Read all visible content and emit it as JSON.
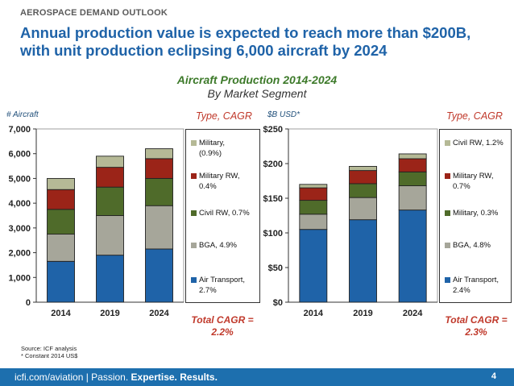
{
  "header": {
    "kicker": "AEROSPACE DEMAND OUTLOOK",
    "headline_line1": "Annual production value is expected to reach more than $200B,",
    "headline_line2": "with unit production eclipsing 6,000 aircraft by 2024"
  },
  "chart_title": "Aircraft Production 2014-2024",
  "chart_subtitle": "By Market Segment",
  "colors": {
    "air_transport": "#1f63a8",
    "bga": "#a6a69a",
    "civil_rw": "#4f6b2a",
    "military_rw": "#9b2418",
    "military": "#b5b996",
    "text_red": "#c0392b"
  },
  "left": {
    "ylabel": "# Aircraft",
    "type_header": "Type, CAGR",
    "total_line1": "Total CAGR =",
    "total_line2": "2.2%",
    "legend": [
      {
        "line1": "Military,",
        "line2": "(0.9%)",
        "color": "#b5b996"
      },
      {
        "line1": "Military RW,",
        "line2": "0.4%",
        "color": "#9b2418"
      },
      {
        "line1": "Civil RW, 0.7%",
        "line2": "",
        "color": "#4f6b2a"
      },
      {
        "line1": "BGA, 4.9%",
        "line2": "",
        "color": "#a6a69a"
      },
      {
        "line1": "Air Transport,",
        "line2": "2.7%",
        "color": "#1f63a8"
      }
    ]
  },
  "right": {
    "ylabel": "$B USD*",
    "type_header": "Type, CAGR",
    "total_line1": "Total CAGR =",
    "total_line2": "2.3%",
    "legend": [
      {
        "line1": "Civil RW, 1.2%",
        "line2": "",
        "color": "#b5b996"
      },
      {
        "line1": "Military RW,",
        "line2": "0.7%",
        "color": "#9b2418"
      },
      {
        "line1": "Military, 0.3%",
        "line2": "",
        "color": "#4f6b2a"
      },
      {
        "line1": "BGA, 4.8%",
        "line2": "",
        "color": "#a6a69a"
      },
      {
        "line1": "Air Transport,",
        "line2": "2.4%",
        "color": "#1f63a8"
      }
    ]
  },
  "chart_data": [
    {
      "type": "bar",
      "stacked": true,
      "title": "Aircraft Production 2014-2024",
      "ylabel": "# Aircraft",
      "categories": [
        "2014",
        "2019",
        "2024"
      ],
      "ylim": [
        0,
        7000
      ],
      "yticks": [
        0,
        1000,
        2000,
        3000,
        4000,
        5000,
        6000,
        7000
      ],
      "ytick_labels": [
        "0",
        "1,000",
        "2,000",
        "3,000",
        "4,000",
        "5,000",
        "6,000",
        "7,000"
      ],
      "series": [
        {
          "name": "Air Transport",
          "color": "#1f63a8",
          "values": [
            1650,
            1900,
            2150
          ]
        },
        {
          "name": "BGA",
          "color": "#a6a69a",
          "values": [
            1100,
            1600,
            1750
          ]
        },
        {
          "name": "Civil RW",
          "color": "#4f6b2a",
          "values": [
            1000,
            1150,
            1100
          ]
        },
        {
          "name": "Military RW",
          "color": "#9b2418",
          "values": [
            800,
            800,
            800
          ]
        },
        {
          "name": "Military",
          "color": "#b5b996",
          "values": [
            450,
            450,
            400
          ]
        }
      ]
    },
    {
      "type": "bar",
      "stacked": true,
      "title": "Aircraft Production 2014-2024",
      "ylabel": "$B USD*",
      "categories": [
        "2014",
        "2019",
        "2024"
      ],
      "ylim": [
        0,
        250
      ],
      "yticks": [
        0,
        50,
        100,
        150,
        200,
        250
      ],
      "ytick_labels": [
        "$0",
        "$50",
        "$100",
        "$150",
        "$200",
        "$250"
      ],
      "series": [
        {
          "name": "Air Transport",
          "color": "#1f63a8",
          "values": [
            105,
            119,
            133
          ]
        },
        {
          "name": "BGA",
          "color": "#a6a69a",
          "values": [
            22,
            32,
            35
          ]
        },
        {
          "name": "Military",
          "color": "#4f6b2a",
          "values": [
            20,
            20,
            20
          ]
        },
        {
          "name": "Military RW",
          "color": "#9b2418",
          "values": [
            18,
            19,
            19
          ]
        },
        {
          "name": "Civil RW",
          "color": "#b5b996",
          "values": [
            5,
            6,
            7
          ]
        }
      ]
    }
  ],
  "source": {
    "line1": "Source: ICF analysis",
    "line2": "* Constant 2014 US$"
  },
  "footer": {
    "site": "icfi.com/aviation",
    "sep": " | Passion. ",
    "tag1": "Expertise.",
    "tag2": "Results.",
    "page": "4"
  }
}
